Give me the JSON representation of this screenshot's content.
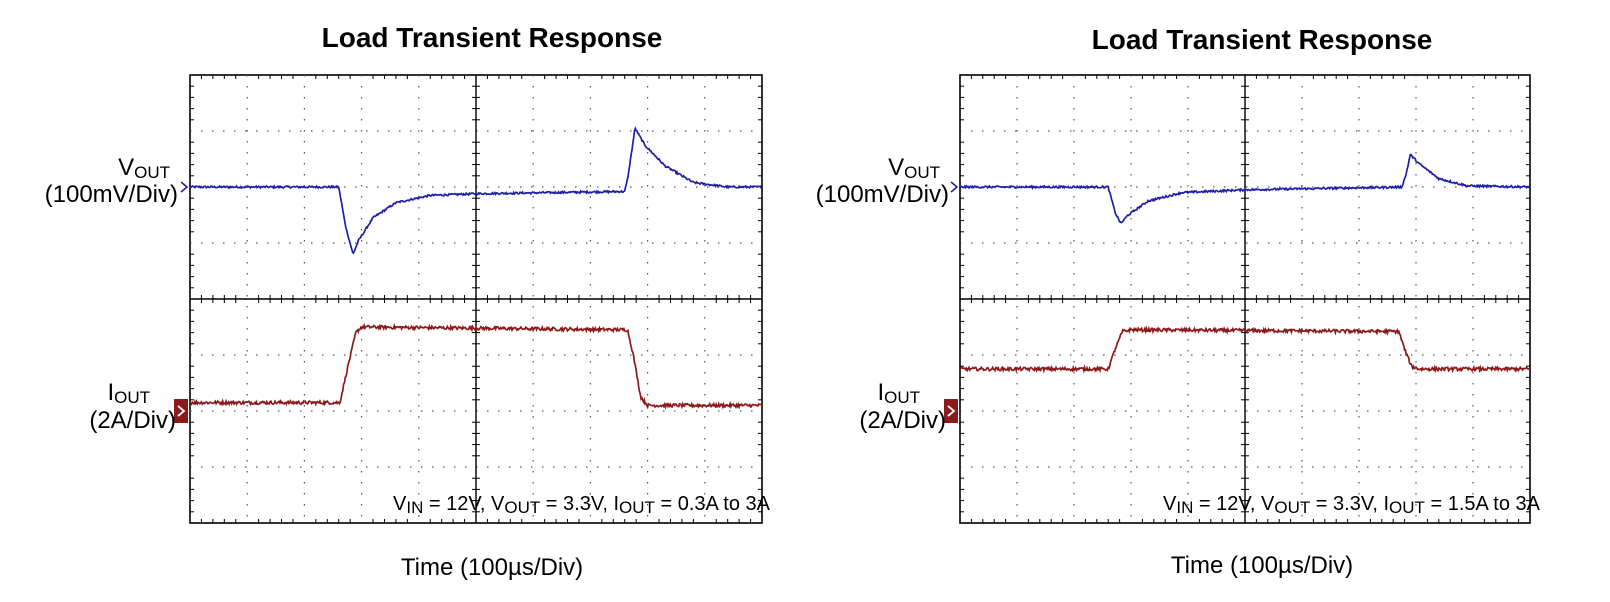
{
  "chart_data": [
    {
      "type": "line",
      "title": "Load Transient Response",
      "xlabel": "Time (100µs/Div)",
      "x_divisions": 10,
      "y_divisions": 8,
      "grid": true,
      "series": [
        {
          "name": "VOUT",
          "name_main": "V",
          "name_sub": "OUT",
          "scale": "(100mV/Div)",
          "color": "#1f1fa8",
          "unit": "div",
          "reference_div": 6,
          "points": [
            [
              0,
              6.0
            ],
            [
              2.6,
              6.0
            ],
            [
              2.72,
              5.3
            ],
            [
              2.85,
              4.8
            ],
            [
              2.95,
              5.05
            ],
            [
              3.2,
              5.45
            ],
            [
              3.6,
              5.72
            ],
            [
              4.2,
              5.85
            ],
            [
              5.0,
              5.88
            ],
            [
              7.6,
              5.92
            ],
            [
              7.66,
              6.2
            ],
            [
              7.78,
              7.05
            ],
            [
              7.95,
              6.75
            ],
            [
              8.3,
              6.38
            ],
            [
              8.8,
              6.08
            ],
            [
              9.4,
              6.0
            ],
            [
              10,
              6.0
            ]
          ]
        },
        {
          "name": "IOUT",
          "name_main": "I",
          "name_sub": "OUT",
          "scale": "(2A/Div)",
          "color": "#8b1a1a",
          "unit": "div",
          "reference_div": 2.0,
          "points": [
            [
              0,
              2.15
            ],
            [
              2.62,
              2.15
            ],
            [
              2.75,
              2.75
            ],
            [
              2.9,
              3.4
            ],
            [
              3.0,
              3.5
            ],
            [
              7.65,
              3.45
            ],
            [
              7.75,
              3.0
            ],
            [
              7.88,
              2.25
            ],
            [
              8.0,
              2.1
            ],
            [
              10,
              2.1
            ]
          ]
        }
      ],
      "conditions": [
        {
          "main": "V",
          "sub": "IN",
          "rest": " = 12V, "
        },
        {
          "main": "V",
          "sub": "OUT",
          "rest": " = 3.3V, "
        },
        {
          "main": "I",
          "sub": "OUT",
          "rest": " = 0.3A to 3A"
        }
      ]
    },
    {
      "type": "line",
      "title": "Load Transient Response",
      "xlabel": "Time (100µs/Div)",
      "x_divisions": 10,
      "y_divisions": 8,
      "grid": true,
      "series": [
        {
          "name": "VOUT",
          "name_main": "V",
          "name_sub": "OUT",
          "scale": "(100mV/Div)",
          "color": "#1f1fa8",
          "unit": "div",
          "reference_div": 6,
          "points": [
            [
              0,
              6.0
            ],
            [
              2.6,
              6.0
            ],
            [
              2.72,
              5.55
            ],
            [
              2.82,
              5.35
            ],
            [
              2.95,
              5.5
            ],
            [
              3.3,
              5.75
            ],
            [
              3.9,
              5.9
            ],
            [
              5.0,
              5.95
            ],
            [
              7.75,
              6.0
            ],
            [
              7.82,
              6.2
            ],
            [
              7.9,
              6.58
            ],
            [
              8.05,
              6.42
            ],
            [
              8.4,
              6.15
            ],
            [
              8.9,
              6.02
            ],
            [
              10,
              6.0
            ]
          ]
        },
        {
          "name": "IOUT",
          "name_main": "I",
          "name_sub": "OUT",
          "scale": "(2A/Div)",
          "color": "#8b1a1a",
          "unit": "div",
          "reference_div": 2.0,
          "points": [
            [
              0,
              2.75
            ],
            [
              2.6,
              2.75
            ],
            [
              2.72,
              3.1
            ],
            [
              2.85,
              3.42
            ],
            [
              3.0,
              3.45
            ],
            [
              7.7,
              3.42
            ],
            [
              7.8,
              3.1
            ],
            [
              7.92,
              2.8
            ],
            [
              8.05,
              2.75
            ],
            [
              10,
              2.75
            ]
          ]
        }
      ],
      "conditions": [
        {
          "main": "V",
          "sub": "IN",
          "rest": " = 12V, "
        },
        {
          "main": "V",
          "sub": "OUT",
          "rest": " = 3.3V, "
        },
        {
          "main": "I",
          "sub": "OUT",
          "rest": " = 1.5A to 3A"
        }
      ]
    }
  ]
}
